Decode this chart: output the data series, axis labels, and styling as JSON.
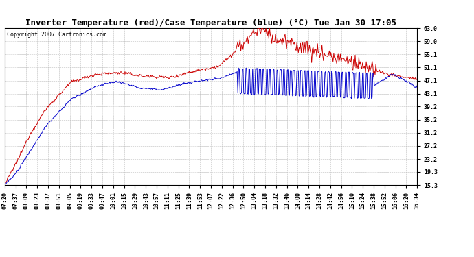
{
  "title": "Inverter Temperature (red)/Case Temperature (blue) (°C) Tue Jan 30 17:05",
  "copyright_text": "Copyright 2007 Cartronics.com",
  "background_color": "#ffffff",
  "plot_bg_color": "#ffffff",
  "grid_color": "#bbbbbb",
  "y_ticks": [
    15.3,
    19.3,
    23.2,
    27.2,
    31.2,
    35.2,
    39.2,
    43.1,
    47.1,
    51.1,
    55.1,
    59.0,
    63.0
  ],
  "x_labels": [
    "07:20",
    "07:37",
    "08:09",
    "08:23",
    "08:37",
    "08:51",
    "09:05",
    "09:19",
    "09:33",
    "09:47",
    "10:01",
    "10:15",
    "10:29",
    "10:43",
    "10:57",
    "11:11",
    "11:25",
    "11:39",
    "11:53",
    "12:07",
    "12:22",
    "12:36",
    "12:50",
    "13:04",
    "13:18",
    "13:32",
    "13:46",
    "14:00",
    "14:14",
    "14:28",
    "14:42",
    "14:56",
    "15:10",
    "15:24",
    "15:38",
    "15:52",
    "16:06",
    "16:20",
    "16:34"
  ],
  "title_fontsize": 9,
  "axis_fontsize": 6,
  "copyright_fontsize": 6,
  "red_color": "#cc0000",
  "blue_color": "#0000cc",
  "ymin": 15.3,
  "ymax": 63.0
}
